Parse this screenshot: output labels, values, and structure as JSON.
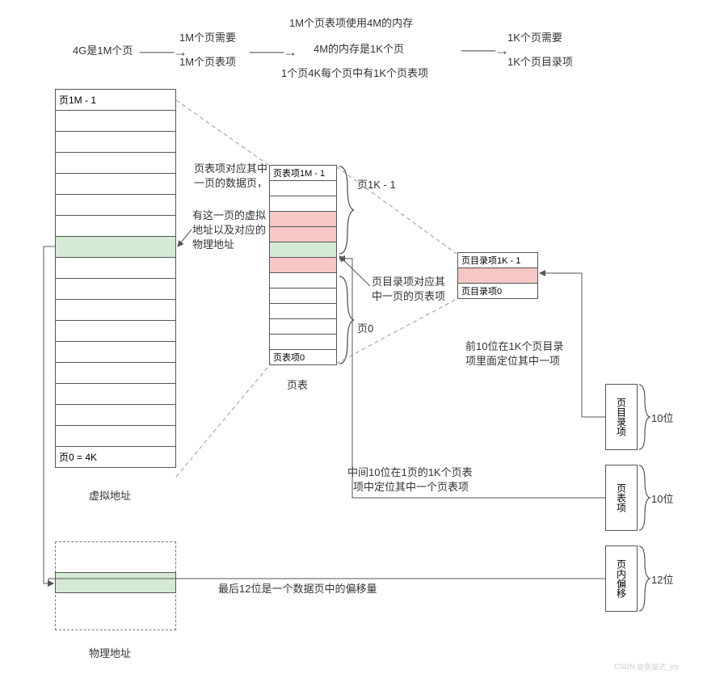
{
  "colors": {
    "border": "#555555",
    "dash": "#999999",
    "text": "#333333",
    "green": "#d5ead4",
    "red": "#f6c7c5",
    "bg": "#ffffff"
  },
  "topflow": {
    "n1": "4G是1M个页",
    "n2a": "1M个页需要",
    "n2b": "1M个页表项",
    "n3a": "1M个页表项使用4M的内存",
    "n3b": "4M的内存是1K个页",
    "n3c": "1个页4K每个页中有1K个页表项",
    "n4a": "1K个页需要",
    "n4b": "1K个页目录项"
  },
  "virtTable": {
    "top": "页1M - 1",
    "bottom": "页0 = 4K",
    "label": "虚拟地址"
  },
  "physTable": {
    "label": "物理地址"
  },
  "midNotes": {
    "a1": "页表项对应其中",
    "a2": "一页的数据页，",
    "b1": "有这一页的虚拟",
    "b2": "地址以及对应的",
    "b3": "物理地址"
  },
  "pte": {
    "top": "页表项1M - 1",
    "bottom": "页表项0",
    "label": "页表",
    "rnote_a": "页1K - 1",
    "rnote_b": "页0"
  },
  "pde": {
    "top": "页目录项1K - 1",
    "bottom": "页目录项0",
    "note1a": "页目录项对应其",
    "note1b": "中一页的页表项",
    "note2a": "前10位在1K个页目录",
    "note2b": "项里面定位其中一项"
  },
  "bits": {
    "item1": "页目录项",
    "bits1": "10位",
    "item2": "页表项",
    "bits2": "10位",
    "item3": "页内偏移",
    "bits3": "12位"
  },
  "lowerNotes": {
    "mid10a": "中间10位在1页的1K个页表",
    "mid10b": "项中定位其中一个页表项",
    "last12": "最后12位是一个数据页中的偏移量"
  },
  "watermark": "CSDN @张益达_joy"
}
